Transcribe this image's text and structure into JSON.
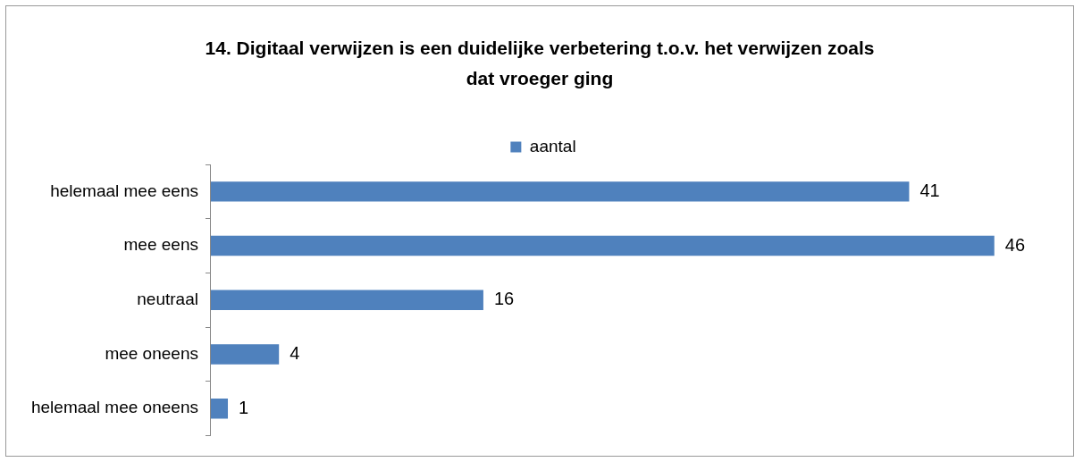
{
  "chart_data": {
    "type": "bar",
    "orientation": "horizontal",
    "title": "14. Digitaal verwijzen is een duidelijke verbetering t.o.v. het verwijzen zoals dat vroeger ging",
    "categories": [
      "helemaal mee eens",
      "mee eens",
      "neutraal",
      "mee oneens",
      "helemaal mee oneens"
    ],
    "series": [
      {
        "name": "aantal",
        "color": "#4f81bd",
        "values": [
          41,
          46,
          16,
          4,
          1
        ]
      }
    ],
    "tick_labels": "y",
    "data_labels": true,
    "legend": "top"
  }
}
